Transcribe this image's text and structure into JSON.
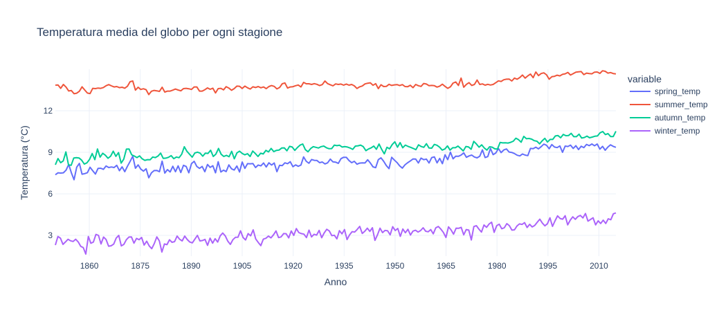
{
  "chart_data": {
    "type": "line",
    "title": "Temperatura media del globo per ogni stagione",
    "xlabel": "Anno",
    "ylabel": "Temperatura (°C)",
    "legend_title": "variable",
    "legend_position": "right",
    "grid": true,
    "xlim": [
      1850,
      2015
    ],
    "ylim": [
      1.5,
      15.0
    ],
    "x_ticks": [
      1860,
      1875,
      1890,
      1905,
      1920,
      1935,
      1950,
      1965,
      1980,
      1995,
      2010
    ],
    "y_ticks": [
      3,
      6,
      9,
      12
    ],
    "x_start": 1850,
    "series": [
      {
        "name": "spring_temp",
        "color": "#636efa",
        "values": [
          7.38,
          7.52,
          7.5,
          7.52,
          7.71,
          8.12,
          7.52,
          7.02,
          7.93,
          8.2,
          7.42,
          7.46,
          7.53,
          7.92,
          7.67,
          7.43,
          7.84,
          7.85,
          7.77,
          8.01,
          7.9,
          7.94,
          7.9,
          8.06,
          7.67,
          7.95,
          7.6,
          7.99,
          8.34,
          8.72,
          7.85,
          8.09,
          7.79,
          7.64,
          7.81,
          7.16,
          7.52,
          7.68,
          7.69,
          7.6,
          8.36,
          7.5,
          7.75,
          7.58,
          7.99,
          7.6,
          8.02,
          7.54,
          8.06,
          7.98,
          7.52,
          8.18,
          8.35,
          7.98,
          7.84,
          7.98,
          7.6,
          8.12,
          7.91,
          8.03,
          7.52,
          8.32,
          7.58,
          7.71,
          7.61,
          8.09,
          7.81,
          7.72,
          8.01,
          7.58,
          8.3,
          7.84,
          8.18,
          8.17,
          8.19,
          7.9,
          8.08,
          8.02,
          8.23,
          7.94,
          8.24,
          8.08,
          8.23,
          7.6,
          8.06,
          8.04,
          8.24,
          8.18,
          8.32,
          7.96,
          8.09,
          7.99,
          8.08,
          8.67,
          8.35,
          8.21,
          8.48,
          8.42,
          8.41,
          8.25,
          8.3,
          8.16,
          8.24,
          8.51,
          8.31,
          8.29,
          8.2,
          8.54,
          8.64,
          8.64,
          8.41,
          8.25,
          8.35,
          8.14,
          8.22,
          8.24,
          8.23,
          8.46,
          8.23,
          7.95,
          7.89,
          8.47,
          8.6,
          8.35,
          8.04,
          7.82,
          8.64,
          8.44,
          8.26,
          8.02,
          7.86,
          8.1,
          8.25,
          8.38,
          8.52,
          8.51,
          8.23,
          8.58,
          8.47,
          8.51,
          8.23,
          8.62,
          8.67,
          8.24,
          8.56,
          8.18,
          8.82,
          8.47,
          9.01,
          8.53,
          8.72,
          8.71,
          8.8,
          8.96,
          8.64,
          8.74,
          8.8,
          8.66,
          8.6,
          8.72,
          9.18,
          8.62,
          8.69,
          9.28,
          8.83,
          8.95,
          9.27,
          8.98,
          9.17,
          9.24,
          9.02,
          8.99,
          8.91,
          8.79,
          8.74,
          8.88,
          8.8,
          8.76,
          9.28,
          9.26,
          9.37,
          9.25,
          9.41,
          9.59,
          9.51,
          9.26,
          9.56,
          9.38,
          9.34,
          9.46,
          9.0,
          9.45,
          9.42,
          9.52,
          9.28,
          9.48,
          9.2,
          9.44,
          9.34,
          9.57,
          9.48,
          9.6,
          9.47,
          9.6,
          9.23,
          9.43,
          9.15,
          9.38,
          9.54,
          9.43,
          9.36
        ]
      },
      {
        "name": "summer_temp",
        "color": "#ef553b",
        "values": [
          13.85,
          13.86,
          13.62,
          13.9,
          13.71,
          13.43,
          13.46,
          13.23,
          13.27,
          13.41,
          13.73,
          13.5,
          13.28,
          13.24,
          13.62,
          13.6,
          13.64,
          13.62,
          13.68,
          13.81,
          13.89,
          13.8,
          13.72,
          13.75,
          13.67,
          13.7,
          13.63,
          13.77,
          14.1,
          14.15,
          13.49,
          13.7,
          13.54,
          13.59,
          13.52,
          13.17,
          13.41,
          13.47,
          13.44,
          13.4,
          13.7,
          13.35,
          13.42,
          13.42,
          13.49,
          13.57,
          13.5,
          13.44,
          13.6,
          13.62,
          13.59,
          13.54,
          13.72,
          13.72,
          13.42,
          13.42,
          13.52,
          13.65,
          13.55,
          13.63,
          13.29,
          13.6,
          13.62,
          13.51,
          13.74,
          13.64,
          13.48,
          13.6,
          13.78,
          13.77,
          13.61,
          13.78,
          13.66,
          13.57,
          13.73,
          13.68,
          13.75,
          13.66,
          13.72,
          13.6,
          13.75,
          13.82,
          13.76,
          13.58,
          13.68,
          13.95,
          14.01,
          13.64,
          13.72,
          13.74,
          13.81,
          13.86,
          13.72,
          14.05,
          13.95,
          13.95,
          13.9,
          13.96,
          13.91,
          13.82,
          13.89,
          14.15,
          13.96,
          13.88,
          13.8,
          13.94,
          13.9,
          13.93,
          13.85,
          13.93,
          13.85,
          13.9,
          13.8,
          13.61,
          13.73,
          13.79,
          13.94,
          13.99,
          14.02,
          13.84,
          13.96,
          13.6,
          13.88,
          13.75,
          13.76,
          13.91,
          13.83,
          13.87,
          13.89,
          13.82,
          13.89,
          13.75,
          13.74,
          13.84,
          13.67,
          13.9,
          13.81,
          13.76,
          13.97,
          13.93,
          13.81,
          13.83,
          13.81,
          13.71,
          13.78,
          13.92,
          13.76,
          13.62,
          13.73,
          14.0,
          14.08,
          13.83,
          14.36,
          13.7,
          13.91,
          14.03,
          13.83,
          13.9,
          14.22,
          13.9,
          13.94,
          13.85,
          13.91,
          13.86,
          13.9,
          14.03,
          14.16,
          14.12,
          14.24,
          14.28,
          14.29,
          14.15,
          14.36,
          14.28,
          14.4,
          14.58,
          14.36,
          14.52,
          14.65,
          14.39,
          14.8,
          14.54,
          14.69,
          14.74,
          14.6,
          14.28,
          14.46,
          14.49,
          14.57,
          14.52,
          14.63,
          14.67,
          14.77,
          14.58,
          14.68,
          14.79,
          14.81,
          14.83,
          14.61,
          14.72,
          14.69,
          14.67,
          14.79,
          14.8,
          14.7,
          14.89,
          14.85,
          14.72,
          14.76,
          14.69,
          14.66
        ]
      },
      {
        "name": "autumn_temp",
        "color": "#00cc96",
        "values": [
          8.1,
          8.55,
          8.25,
          8.38,
          9.03,
          8.09,
          8.06,
          8.59,
          8.61,
          8.59,
          8.43,
          8.15,
          8.24,
          8.49,
          8.91,
          8.47,
          9.24,
          8.65,
          8.93,
          8.79,
          8.57,
          8.72,
          9.08,
          8.71,
          8.98,
          8.22,
          8.51,
          9.23,
          9.24,
          8.82,
          8.73,
          8.62,
          8.74,
          8.53,
          8.42,
          8.47,
          8.46,
          8.66,
          8.62,
          8.73,
          8.94,
          8.56,
          8.58,
          8.64,
          8.76,
          8.54,
          8.66,
          8.61,
          8.86,
          9.4,
          9.07,
          8.86,
          8.65,
          8.95,
          9.01,
          8.94,
          8.72,
          8.94,
          8.92,
          9.15,
          8.7,
          8.87,
          9.28,
          8.86,
          8.7,
          8.78,
          8.68,
          9.07,
          8.53,
          8.96,
          9.08,
          8.92,
          8.82,
          8.9,
          8.7,
          9.09,
          8.91,
          8.7,
          8.93,
          8.88,
          9.14,
          9.03,
          9.28,
          9.05,
          9.14,
          9.16,
          9.31,
          9.32,
          9.11,
          9.43,
          9.38,
          9.14,
          9.35,
          9.52,
          9.6,
          9.19,
          9.04,
          9.27,
          9.41,
          9.36,
          9.31,
          9.41,
          9.45,
          9.33,
          9.26,
          9.27,
          9.52,
          9.48,
          9.51,
          9.38,
          9.41,
          9.38,
          9.31,
          9.21,
          9.45,
          9.47,
          9.52,
          9.41,
          9.12,
          9.24,
          9.32,
          9.45,
          9.22,
          9.6,
          9.21,
          8.89,
          9.36,
          9.25,
          9.56,
          9.76,
          9.37,
          9.7,
          9.33,
          9.52,
          9.43,
          9.36,
          9.28,
          9.19,
          9.54,
          9.42,
          9.36,
          9.62,
          9.31,
          9.3,
          9.57,
          9.51,
          9.37,
          9.16,
          9.24,
          9.46,
          9.16,
          9.33,
          9.33,
          9.45,
          9.28,
          9.1,
          9.42,
          9.39,
          9.22,
          9.79,
          9.6,
          9.37,
          9.54,
          9.31,
          9.16,
          9.4,
          9.37,
          9.25,
          9.23,
          9.71,
          9.68,
          9.69,
          9.67,
          9.72,
          9.8,
          10.02,
          9.91,
          9.73,
          10.15,
          9.98,
          10.0,
          9.95,
          9.84,
          9.8,
          9.61,
          9.83,
          10.01,
          9.74,
          9.93,
          9.93,
          10.18,
          10.21,
          10.05,
          10.29,
          10.2,
          10.21,
          10.37,
          10.13,
          10.13,
          10.31,
          10.03,
          10.07,
          10.17,
          10.05,
          10.1,
          10.16,
          10.18,
          10.41,
          10.5,
          10.28,
          10.35,
          10.14,
          10.14,
          10.52
        ]
      },
      {
        "name": "winter_temp",
        "color": "#ab63fa",
        "values": [
          2.3,
          2.92,
          2.8,
          2.35,
          2.53,
          2.72,
          2.61,
          2.56,
          2.72,
          2.53,
          2.21,
          2.12,
          1.65,
          2.92,
          2.43,
          2.52,
          3.07,
          3.0,
          2.38,
          2.88,
          2.7,
          2.22,
          2.25,
          2.37,
          2.81,
          3.0,
          2.24,
          2.35,
          2.69,
          2.88,
          2.89,
          2.44,
          2.78,
          2.69,
          2.85,
          2.3,
          2.58,
          2.24,
          2.04,
          2.41,
          2.89,
          2.6,
          1.8,
          2.38,
          2.33,
          2.68,
          2.5,
          2.55,
          2.95,
          2.72,
          2.6,
          2.95,
          2.7,
          2.52,
          2.46,
          2.73,
          3.0,
          2.6,
          2.63,
          2.71,
          2.28,
          2.8,
          2.44,
          2.76,
          2.52,
          2.97,
          3.17,
          2.96,
          2.58,
          2.35,
          2.69,
          2.86,
          2.87,
          3.33,
          2.85,
          2.67,
          3.13,
          2.97,
          3.4,
          2.74,
          2.49,
          2.26,
          2.73,
          2.79,
          2.95,
          2.82,
          3.04,
          3.32,
          2.84,
          2.89,
          3.13,
          3.12,
          2.82,
          3.32,
          3.0,
          3.49,
          3.2,
          3.13,
          3.09,
          2.84,
          3.38,
          2.89,
          3.08,
          3.02,
          3.36,
          2.83,
          3.18,
          3.44,
          3.32,
          2.98,
          3.01,
          2.75,
          3.34,
          3.11,
          3.42,
          2.7,
          3.04,
          3.27,
          3.24,
          3.43,
          3.65,
          3.14,
          3.3,
          3.52,
          3.29,
          3.55,
          2.64,
          3.04,
          3.52,
          3.2,
          3.36,
          3.33,
          3.04,
          3.63,
          3.35,
          3.5,
          2.93,
          3.46,
          3.19,
          3.44,
          3.03,
          3.31,
          3.37,
          3.24,
          3.35,
          3.55,
          3.3,
          3.26,
          3.42,
          3.11,
          3.55,
          3.64,
          3.45,
          3.21,
          2.85,
          3.62,
          3.4,
          3.09,
          3.52,
          3.51,
          3.58,
          3.04,
          3.42,
          3.38,
          2.67,
          3.64,
          3.7,
          3.45,
          3.24,
          3.75,
          3.58,
          3.82,
          3.95,
          3.22,
          3.7,
          3.81,
          3.48,
          3.55,
          3.85,
          3.7,
          3.38,
          3.4,
          3.68,
          3.83,
          3.79,
          3.92,
          3.57,
          3.8,
          3.61,
          3.72,
          3.95,
          4.17,
          3.89,
          3.69,
          3.84,
          4.27,
          3.65,
          4.05,
          4.41,
          4.22,
          4.17,
          4.42,
          3.76,
          4.1,
          4.34,
          4.16,
          4.36,
          4.44,
          4.26,
          4.58,
          4.03,
          4.15,
          4.27,
          3.76,
          4.05,
          3.86,
          4.1,
          3.86,
          4.2,
          4.13,
          4.56,
          4.62
        ]
      }
    ]
  }
}
